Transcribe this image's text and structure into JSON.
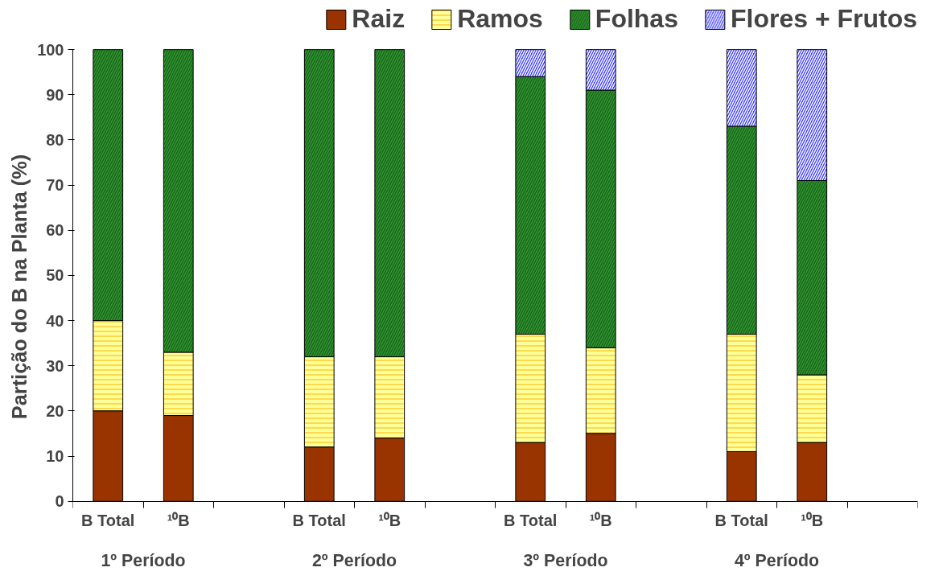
{
  "chart_data": {
    "type": "bar",
    "stacked": true,
    "ylabel": "Partição do B na Planta (%)",
    "categories": [
      "B Total",
      "¹⁰B",
      null,
      "B Total",
      "¹⁰B",
      null,
      "B Total",
      "¹⁰B",
      null,
      "B Total",
      "¹⁰B",
      null
    ],
    "series": [
      {
        "name": "Raiz",
        "color": "#993300",
        "values": [
          20,
          19,
          null,
          12,
          14,
          null,
          13,
          15,
          null,
          11,
          13,
          null
        ]
      },
      {
        "name": "Ramos",
        "color": "#ffff99",
        "values": [
          20,
          14,
          null,
          20,
          18,
          null,
          24,
          19,
          null,
          26,
          15,
          null
        ]
      },
      {
        "name": "Folhas",
        "color": "#339933",
        "values": [
          60,
          67,
          null,
          68,
          68,
          null,
          57,
          57,
          null,
          46,
          43,
          null
        ]
      },
      {
        "name": "Flores + Frutos",
        "color": "#3333ff",
        "values": [
          null,
          null,
          null,
          null,
          null,
          null,
          6,
          9,
          null,
          17,
          29,
          null
        ]
      }
    ],
    "annotations": [
      "1º Período",
      "2º Período",
      "3º Período",
      "4º Período"
    ],
    "ylim": [
      0,
      100
    ],
    "yticks": [
      0,
      10,
      20,
      30,
      40,
      50,
      60,
      70,
      80,
      90,
      100
    ],
    "grid": false,
    "legend": "top"
  }
}
